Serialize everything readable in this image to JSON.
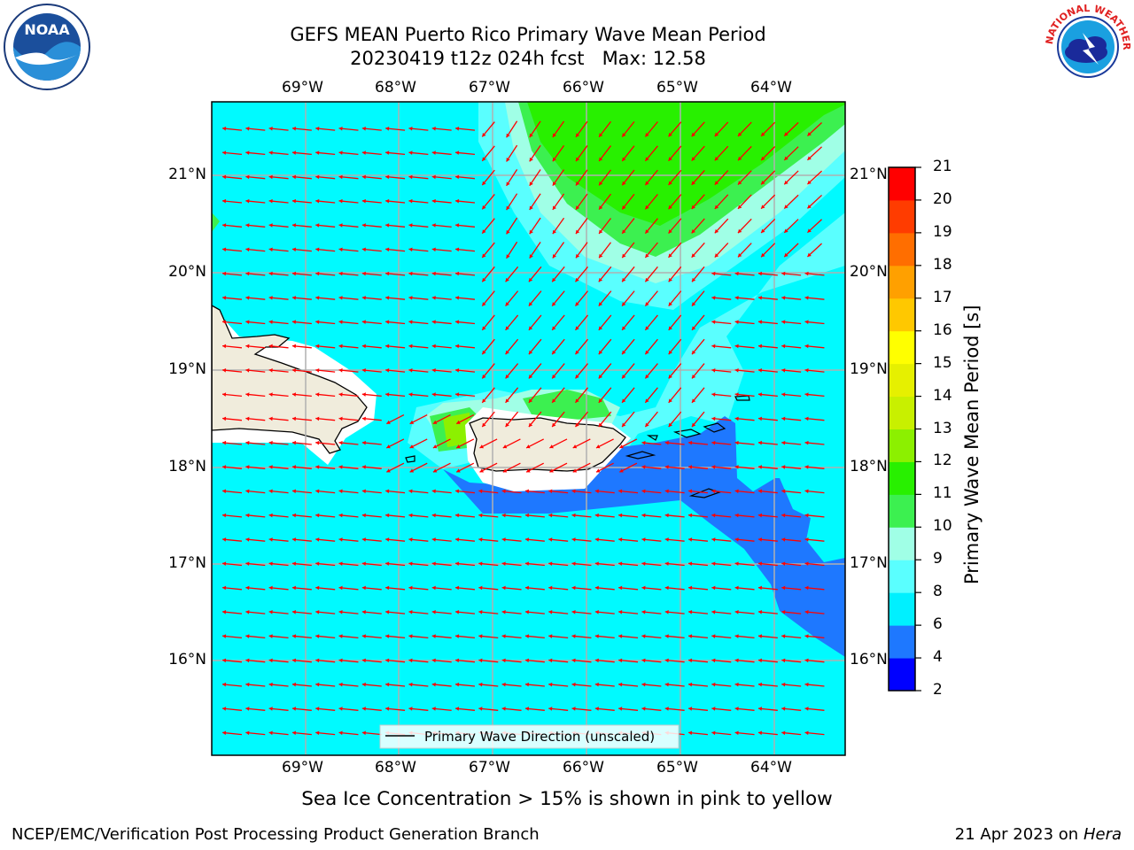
{
  "title": {
    "line1": "GEFS MEAN Puerto Rico Primary Wave Mean Period",
    "line2": "20230419 t12z 024h fcst   Max: 12.58"
  },
  "map": {
    "lon_labels": [
      "69°W",
      "68°W",
      "67°W",
      "66°W",
      "65°W",
      "64°W"
    ],
    "lat_labels": [
      "21°N",
      "20°N",
      "19°N",
      "18°N",
      "17°N",
      "16°N"
    ],
    "legend_label": "Primary Wave Direction (unscaled)",
    "field_colors": {
      "4-6": "#1e78ff",
      "6-8": "#00faff",
      "8-9": "#5affff",
      "9-10": "#a0ffe6",
      "10-11": "#3cf050",
      "11-12": "#28f000",
      "12-13": "#8cf000",
      "land": "#f0ecdc",
      "arrow": "#ff0000"
    }
  },
  "colorbar": {
    "label": "Primary Wave Mean Period [s]",
    "ticks": [
      "2",
      "4",
      "6",
      "8",
      "9",
      "10",
      "11",
      "12",
      "13",
      "14",
      "15",
      "16",
      "17",
      "18",
      "19",
      "20",
      "21"
    ],
    "colors": [
      "#0000ff",
      "#1e78ff",
      "#00f0ff",
      "#5affff",
      "#a0ffe6",
      "#3cf050",
      "#28f000",
      "#8cf000",
      "#c8f000",
      "#e6f000",
      "#ffff00",
      "#ffc800",
      "#ffa000",
      "#ff6e00",
      "#ff3c00",
      "#ff0000"
    ]
  },
  "note": "Sea Ice Concentration > 15% is shown in pink to yellow",
  "footer": {
    "left": "NCEP/EMC/Verification Post Processing Product Generation Branch",
    "right_date": "21 Apr 2023 on ",
    "right_host": "Hera"
  },
  "logos": {
    "noaa_text": "NOAA",
    "nws_text": "NATIONAL WEATHER SERVICE"
  }
}
